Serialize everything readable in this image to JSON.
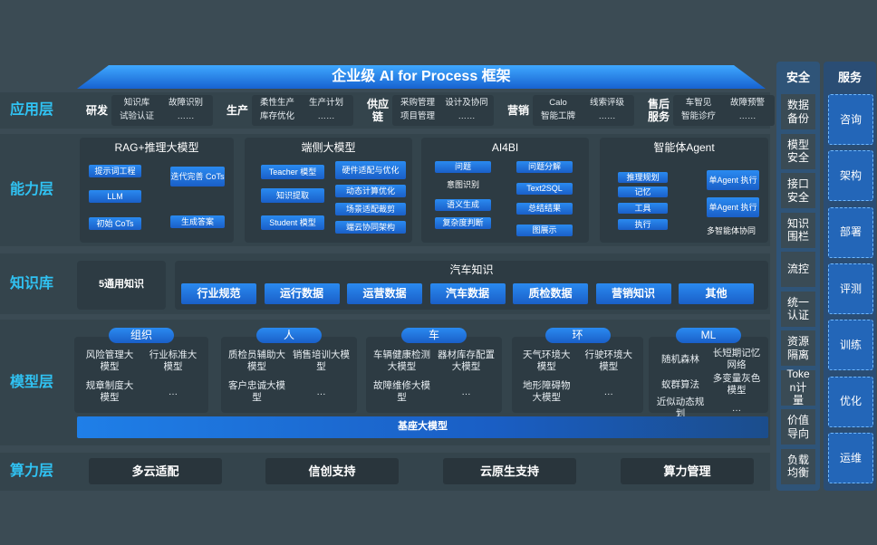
{
  "title": "企业级 AI for Process 框架",
  "layers": [
    "应用层",
    "能力层",
    "知识库",
    "模型层",
    "算力层"
  ],
  "applications": [
    {
      "name": "研发",
      "items": [
        "知识库",
        "故障识别",
        "试验认证",
        "……"
      ]
    },
    {
      "name": "生产",
      "items": [
        "柔性生产",
        "生产计划",
        "库存优化",
        "……"
      ]
    },
    {
      "name": "供应链",
      "items": [
        "采购管理",
        "设计及协同",
        "项目管理",
        "……"
      ]
    },
    {
      "name": "营销",
      "items": [
        "Calo",
        "线索评级",
        "智能工牌",
        "……"
      ]
    },
    {
      "name": "售后服务",
      "items": [
        "车智见",
        "故障预警",
        "智能诊疗",
        "……"
      ]
    }
  ],
  "capabilities": [
    {
      "title": "RAG+推理大模型",
      "items": [
        "提示词工程",
        "LLM",
        "初始 CoTs",
        "迭代完善 CoTs",
        "生成答案"
      ]
    },
    {
      "title": "端侧大模型",
      "items": [
        "Teacher 模型",
        "知识提取",
        "Student 模型",
        "硬件适配与优化",
        "动态计算优化",
        "场景适配裁剪",
        "端云协同架构"
      ]
    },
    {
      "title": "AI4BI",
      "items": [
        "问题",
        "意图识别",
        "语义生成",
        "复杂度判断",
        "问题分解",
        "Text2SQL",
        "总结结果",
        "图展示"
      ]
    },
    {
      "title": "智能体Agent",
      "items": [
        "推理规划",
        "记忆",
        "工具",
        "执行",
        "单Agent 执行",
        "单Agent 执行",
        "多智能体协同"
      ]
    }
  ],
  "knowledge": {
    "general": "5通用知识",
    "title": "汽车知识",
    "items": [
      "行业规范",
      "运行数据",
      "运营数据",
      "汽车数据",
      "质检数据",
      "营销知识",
      "其他"
    ]
  },
  "models": {
    "groups": [
      {
        "name": "组织",
        "items": [
          "风险管理大模型",
          "行业标准大模型",
          "规章制度大模型",
          "…"
        ]
      },
      {
        "name": "人",
        "items": [
          "质检员辅助大模型",
          "销售培训大模型",
          "客户忠诚大模型",
          "…"
        ]
      },
      {
        "name": "车",
        "items": [
          "车辆健康检测大模型",
          "器材库存配置大模型",
          "故障维修大模型",
          "…"
        ]
      },
      {
        "name": "环",
        "items": [
          "天气环境大模型",
          "行驶环境大模型",
          "地形障碍物大模型",
          "…"
        ]
      },
      {
        "name": "ML",
        "items": [
          "随机森林",
          "长短期记忆网络",
          "蚁群算法",
          "多变量灰色模型",
          "近似动态规划",
          "…"
        ]
      }
    ],
    "base": "基座大模型"
  },
  "compute": [
    "多云适配",
    "信创支持",
    "云原生支持",
    "算力管理"
  ],
  "security": {
    "title": "安全",
    "items": [
      "数据备份",
      "模型安全",
      "接口安全",
      "知识围栏",
      "流控",
      "统一认证",
      "资源隔离",
      "Token计量",
      "价值导向",
      "负载均衡"
    ]
  },
  "services": {
    "title": "服务",
    "items": [
      "咨询",
      "架构",
      "部署",
      "评测",
      "训练",
      "优化",
      "运维"
    ]
  }
}
